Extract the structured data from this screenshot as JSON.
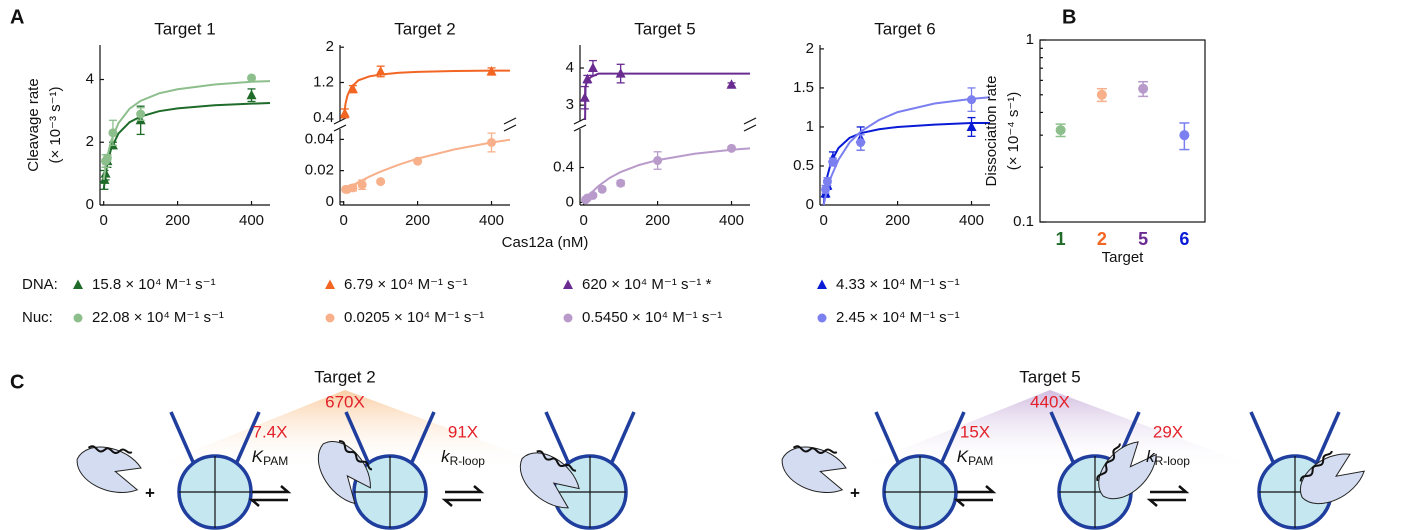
{
  "panel_labels": [
    "A",
    "B",
    "C"
  ],
  "x_label": "Cas12a (nM)",
  "legend_labels": [
    "DNA:",
    "Nuc:"
  ],
  "chart_data": [
    {
      "type": "scatter",
      "title": "Target 1",
      "y_label": [
        "Cleavage rate",
        "(× 10⁻³ s⁻¹)"
      ],
      "xlim": [
        -10,
        450
      ],
      "xticks": [
        0,
        200,
        400
      ],
      "ylim": [
        0,
        5.1
      ],
      "yticks": [
        0,
        2,
        4
      ],
      "series": [
        {
          "name": "15.8 × 10⁴ M⁻¹ s⁻¹",
          "color": "#1e6b2a",
          "marker": "triangle",
          "x": [
            2,
            5,
            10,
            25,
            100,
            400
          ],
          "values": [
            0.8,
            1.0,
            1.4,
            1.9,
            2.7,
            3.5
          ],
          "errors": [
            0.3,
            0.2,
            0.2,
            0.1,
            0.45,
            0.2
          ],
          "fit_x": [
            0,
            5,
            10,
            20,
            40,
            70,
            100,
            150,
            200,
            300,
            400,
            450
          ],
          "fit_values": [
            0.5,
            0.98,
            1.33,
            1.79,
            2.28,
            2.64,
            2.82,
            2.99,
            3.08,
            3.18,
            3.23,
            3.25
          ]
        },
        {
          "name": "22.08 × 10⁴ M⁻¹ s⁻¹",
          "color": "#8dbf8d",
          "marker": "circle",
          "x": [
            5,
            10,
            25,
            100,
            400
          ],
          "values": [
            1.4,
            1.5,
            2.3,
            2.9,
            4.05
          ],
          "errors": [
            0.2,
            0.1,
            0.4,
            0.2,
            0.05
          ],
          "fit_x": [
            0,
            5,
            10,
            20,
            40,
            70,
            100,
            150,
            200,
            300,
            400,
            450
          ],
          "fit_values": [
            0.8,
            1.23,
            1.56,
            2.04,
            2.61,
            3.07,
            3.32,
            3.56,
            3.69,
            3.84,
            3.93,
            3.95
          ]
        }
      ]
    },
    {
      "type": "scatter",
      "title": "Target 2",
      "xlim": [
        -10,
        450
      ],
      "xticks": [
        0,
        200,
        400
      ],
      "ylim": [
        -0.002,
        0.046
      ],
      "yticks": [
        0,
        0.02,
        0.04
      ],
      "ylim_top": [
        0.35,
        2.05
      ],
      "yticks_top": [
        0.4,
        1.2,
        2
      ],
      "series": [
        {
          "name": "6.79 × 10⁴ M⁻¹ s⁻¹",
          "color": "#f26522",
          "marker": "triangle",
          "axis": "top",
          "x": [
            3,
            25,
            100,
            400
          ],
          "values": [
            0.5,
            1.05,
            1.45,
            1.45
          ],
          "errors": [
            0.1,
            0.08,
            0.12,
            0.08
          ],
          "fit_x": [
            0,
            5,
            10,
            20,
            40,
            70,
            100,
            150,
            200,
            300,
            400,
            450
          ],
          "fit_values": [
            0.4,
            0.72,
            0.9,
            1.09,
            1.25,
            1.34,
            1.38,
            1.42,
            1.44,
            1.46,
            1.47,
            1.47
          ]
        },
        {
          "name": "0.0205 × 10⁴ M⁻¹ s⁻¹",
          "color": "#f7b08a",
          "marker": "circle",
          "x": [
            5,
            10,
            25,
            50,
            100,
            200,
            400
          ],
          "values": [
            0.008,
            0.008,
            0.009,
            0.011,
            0.013,
            0.026,
            0.038
          ],
          "errors": [
            0.001,
            0.001,
            0.002,
            0.003,
            0.001,
            0.001,
            0.006
          ],
          "fit_x": [
            0,
            5,
            10,
            20,
            40,
            70,
            100,
            150,
            200,
            300,
            400,
            450
          ],
          "fit_values": [
            0.007,
            0.0078,
            0.0085,
            0.01,
            0.0126,
            0.0162,
            0.0194,
            0.0239,
            0.0277,
            0.0336,
            0.038,
            0.0398
          ]
        }
      ]
    },
    {
      "type": "scatter",
      "title": "Target 5",
      "xlim": [
        -10,
        450
      ],
      "xticks": [
        0,
        200,
        400
      ],
      "ylim": [
        -0.03,
        0.83
      ],
      "yticks": [
        0,
        0.4
      ],
      "ylim_top": [
        2.6,
        4.62
      ],
      "yticks_top": [
        3,
        4
      ],
      "series": [
        {
          "name": "620 × 10⁴ M⁻¹ s⁻¹ *",
          "color": "#6a2c91",
          "marker": "triangle",
          "axis": "top",
          "x": [
            3,
            10,
            25,
            100,
            400
          ],
          "values": [
            3.2,
            3.7,
            4.0,
            3.85,
            3.55
          ],
          "errors": [
            0.3,
            0.1,
            0.2,
            0.25,
            0.05
          ],
          "fit_x": [
            0,
            5,
            10,
            20,
            40,
            70,
            100,
            150,
            200,
            300,
            400,
            450
          ],
          "fit_values": [
            0,
            3.5,
            3.67,
            3.76,
            3.85,
            3.85,
            3.85,
            3.85,
            3.85,
            3.85,
            3.85,
            3.85
          ]
        },
        {
          "name": "0.5450 × 10⁴ M⁻¹ s⁻¹",
          "color": "#b89acb",
          "marker": "circle",
          "x": [
            5,
            10,
            25,
            50,
            100,
            200,
            400
          ],
          "values": [
            0.03,
            0.05,
            0.08,
            0.15,
            0.22,
            0.48,
            0.62
          ],
          "errors": [
            0.02,
            0.02,
            0.02,
            0.02,
            0.03,
            0.1,
            0.02
          ],
          "fit_x": [
            0,
            5,
            10,
            20,
            40,
            70,
            100,
            150,
            200,
            300,
            400,
            450
          ],
          "fit_values": [
            0,
            0.03,
            0.057,
            0.107,
            0.188,
            0.28,
            0.348,
            0.429,
            0.485,
            0.558,
            0.604,
            0.62
          ]
        }
      ]
    },
    {
      "type": "scatter",
      "title": "Target 6",
      "xlim": [
        -10,
        450
      ],
      "xticks": [
        0,
        200,
        400
      ],
      "ylim": [
        0,
        2.05
      ],
      "yticks": [
        0,
        0.5,
        1,
        1.5,
        2
      ],
      "series": [
        {
          "name": "4.33 × 10⁴ M⁻¹ s⁻¹",
          "color": "#0a1bd6",
          "marker": "triangle",
          "x": [
            5,
            10,
            25,
            100,
            400
          ],
          "values": [
            0.15,
            0.25,
            0.6,
            0.85,
            1.0
          ],
          "errors": [
            0.05,
            0.05,
            0.08,
            0.15,
            0.12
          ],
          "fit_x": [
            0,
            5,
            10,
            20,
            40,
            70,
            100,
            150,
            200,
            300,
            400,
            450
          ],
          "fit_values": [
            0,
            0.22,
            0.37,
            0.55,
            0.73,
            0.86,
            0.92,
            0.97,
            1.0,
            1.03,
            1.05,
            1.05
          ]
        },
        {
          "name": "2.45 × 10⁴ M⁻¹ s⁻¹",
          "color": "#7b7ff0",
          "marker": "circle",
          "x": [
            5,
            10,
            25,
            100,
            400
          ],
          "values": [
            0.2,
            0.3,
            0.55,
            0.8,
            1.35
          ],
          "errors": [
            0.05,
            0.05,
            0.05,
            0.1,
            0.15
          ],
          "fit_x": [
            0,
            5,
            10,
            20,
            40,
            70,
            100,
            150,
            200,
            300,
            400,
            450
          ],
          "fit_values": [
            0,
            0.11,
            0.2,
            0.36,
            0.58,
            0.8,
            0.94,
            1.09,
            1.19,
            1.3,
            1.36,
            1.38
          ]
        }
      ]
    },
    {
      "type": "dot",
      "y_label": [
        "Dissociation rate",
        "(× 10⁻⁴ s⁻¹)"
      ],
      "x_label": "Target",
      "categories": [
        "1",
        "2",
        "5",
        "6"
      ],
      "category_colors": [
        "#1e6b2a",
        "#f26522",
        "#6a2c91",
        "#0a1bd6"
      ],
      "colors": [
        "#8dbf8d",
        "#f7b08a",
        "#b89acb",
        "#7b7ff0"
      ],
      "values": [
        0.32,
        0.5,
        0.54,
        0.3
      ],
      "errors": [
        0.025,
        0.04,
        0.05,
        0.05
      ],
      "log_scale": true,
      "ylim": [
        0.1,
        1
      ],
      "yticks": [
        0.1,
        1
      ]
    }
  ],
  "diagram": [
    {
      "title": "Target 2",
      "total": "670X",
      "plus": "+",
      "steps": [
        {
          "fold": "7.4X",
          "symbol": "K",
          "sub": "PAM"
        },
        {
          "fold": "91X",
          "symbol": "k",
          "sub": "R-loop"
        }
      ]
    },
    {
      "title": "Target 5",
      "total": "440X",
      "plus": "+",
      "steps": [
        {
          "fold": "15X",
          "symbol": "K",
          "sub": "PAM"
        },
        {
          "fold": "29X",
          "symbol": "k",
          "sub": "R-loop"
        }
      ]
    }
  ]
}
